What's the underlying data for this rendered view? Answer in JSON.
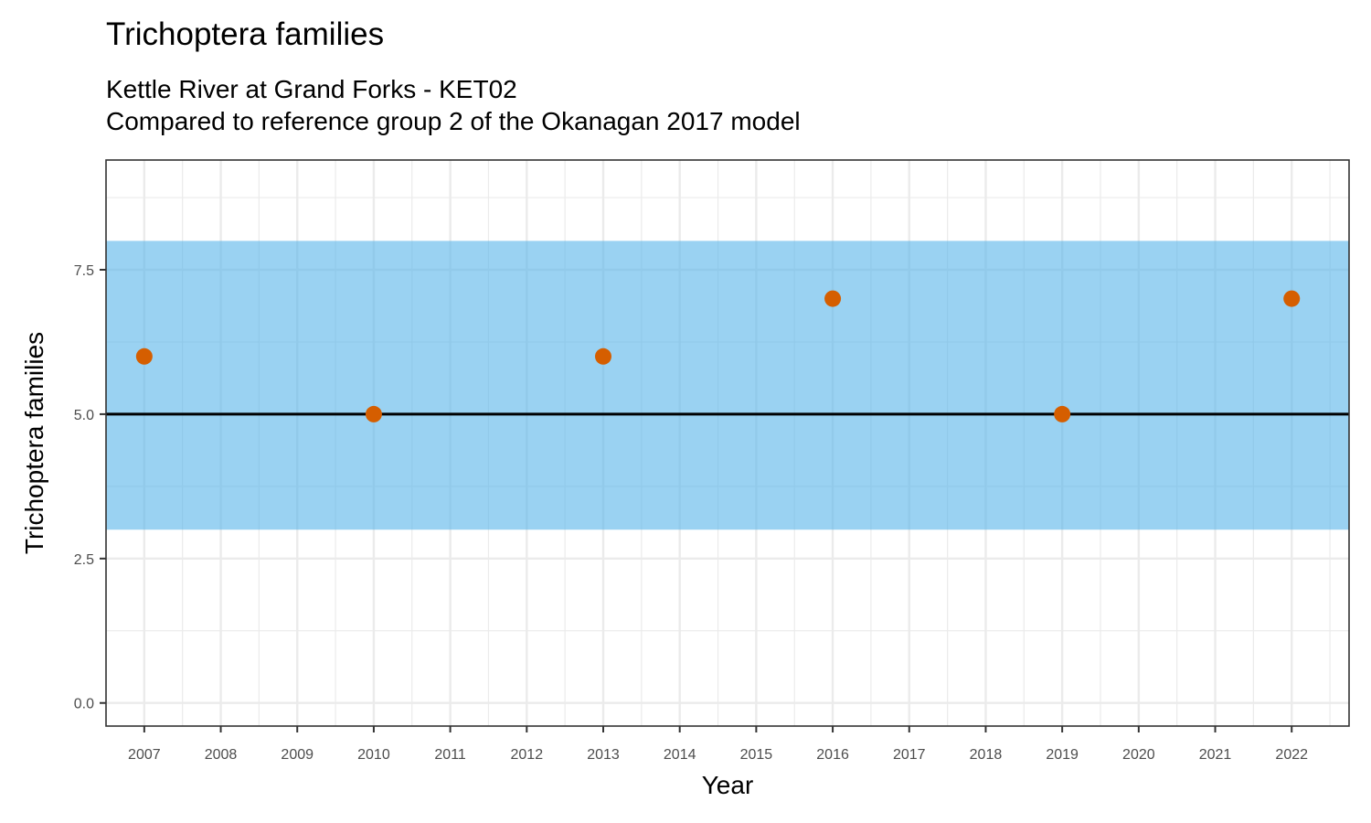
{
  "chart_data": {
    "type": "scatter",
    "title": "Trichoptera families",
    "subtitle_line1": "Kettle River at Grand Forks - KET02",
    "subtitle_line2": "Compared to reference group 2 of the Okanagan 2017 model",
    "xlabel": "Year",
    "ylabel": "Trichoptera families",
    "x_ticks": [
      "2007",
      "2008",
      "2009",
      "2010",
      "2011",
      "2012",
      "2013",
      "2014",
      "2015",
      "2016",
      "2017",
      "2018",
      "2019",
      "2020",
      "2021",
      "2022"
    ],
    "y_ticks": [
      "0.0",
      "2.5",
      "5.0",
      "7.5"
    ],
    "y_tick_values": [
      0,
      2.5,
      5.0,
      7.5
    ],
    "xlim": [
      2006.5,
      2022.75
    ],
    "ylim": [
      -0.4,
      9.4
    ],
    "points": [
      {
        "x": 2007,
        "y": 6
      },
      {
        "x": 2010,
        "y": 5
      },
      {
        "x": 2013,
        "y": 6
      },
      {
        "x": 2016,
        "y": 7
      },
      {
        "x": 2019,
        "y": 5
      },
      {
        "x": 2022,
        "y": 7
      }
    ],
    "reference_band": {
      "low": 3,
      "high": 8
    },
    "reference_line": 5,
    "grid": true,
    "colors": {
      "points": "#D55E00",
      "band": "#56B4E9",
      "reference_line": "#000000",
      "grid": "#EBEBEB",
      "panel_border": "#333333"
    }
  }
}
